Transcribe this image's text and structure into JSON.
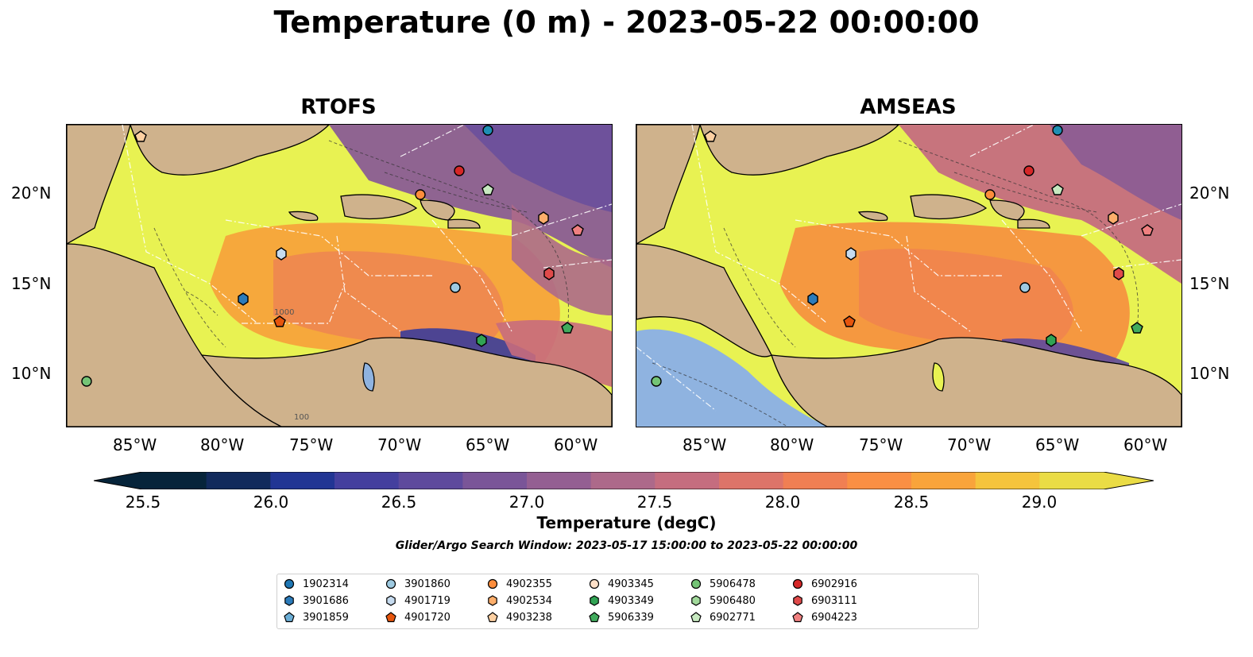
{
  "title": "Temperature (0 m) - 2023-05-22 00:00:00",
  "panels": [
    {
      "title": "RTOFS"
    },
    {
      "title": "AMSEAS"
    }
  ],
  "lat_labels": [
    "20°N",
    "15°N",
    "10°N"
  ],
  "lon_labels": [
    "85°W",
    "80°W",
    "75°W",
    "70°W",
    "65°W",
    "60°W"
  ],
  "colorbar": {
    "label": "Temperature (degC)",
    "ticks": [
      "25.5",
      "26.0",
      "26.5",
      "27.0",
      "27.5",
      "28.0",
      "28.5",
      "29.0"
    ],
    "colors": [
      "#06243a",
      "#112a5c",
      "#213594",
      "#443f9e",
      "#5e4a9d",
      "#7a5598",
      "#945f92",
      "#ad698a",
      "#c56d7f",
      "#dd7469",
      "#f07f53",
      "#fa8f44",
      "#f9a43b",
      "#f5c43c",
      "#eadc45"
    ]
  },
  "search_window": "Glider/Argo Search Window: 2023-05-17 15:00:00 to 2023-05-22 00:00:00",
  "contour_labels": [
    "1000",
    "100"
  ],
  "legend": [
    {
      "id": "1902314",
      "color": "#1f77b4",
      "marker": "circle"
    },
    {
      "id": "3901686",
      "color": "#2b7bba",
      "marker": "hexagon"
    },
    {
      "id": "3901859",
      "color": "#6baed6",
      "marker": "pentagon"
    },
    {
      "id": "3901860",
      "color": "#9ecae1",
      "marker": "circle"
    },
    {
      "id": "4901719",
      "color": "#c6dbef",
      "marker": "hexagon"
    },
    {
      "id": "4901720",
      "color": "#e6550d",
      "marker": "pentagon"
    },
    {
      "id": "4902355",
      "color": "#fd8d3c",
      "marker": "circle"
    },
    {
      "id": "4902534",
      "color": "#fdae6b",
      "marker": "hexagon"
    },
    {
      "id": "4903238",
      "color": "#fdd0a2",
      "marker": "pentagon"
    },
    {
      "id": "4903345",
      "color": "#fee0c8",
      "marker": "circle"
    },
    {
      "id": "4903349",
      "color": "#31a354",
      "marker": "hexagon"
    },
    {
      "id": "5906339",
      "color": "#41ab5d",
      "marker": "pentagon"
    },
    {
      "id": "5906478",
      "color": "#74c476",
      "marker": "circle"
    },
    {
      "id": "5906480",
      "color": "#a1d99b",
      "marker": "hexagon"
    },
    {
      "id": "6902771",
      "color": "#c7e9c0",
      "marker": "pentagon"
    },
    {
      "id": "6902916",
      "color": "#d62728",
      "marker": "circle"
    },
    {
      "id": "6903111",
      "color": "#e04a4a",
      "marker": "hexagon"
    },
    {
      "id": "6904223",
      "color": "#f08080",
      "marker": "pentagon"
    }
  ],
  "colors": {
    "land": "#cfb28c",
    "warm": "#e8f252",
    "lake": "#8fb3e0"
  }
}
